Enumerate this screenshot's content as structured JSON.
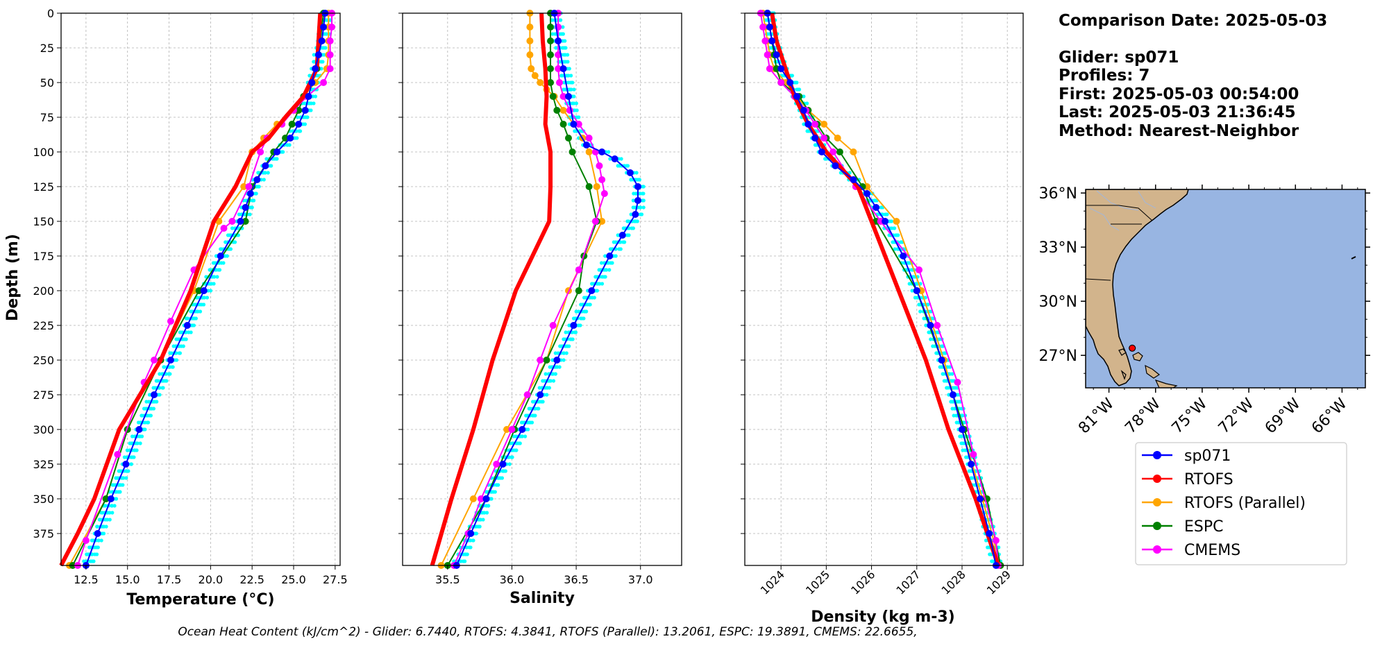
{
  "colors": {
    "sp071": "#0000ff",
    "glider_profiles": "#00ffff",
    "RTOFS": "#ff0000",
    "RTOFS (Parallel)": "#ffa500",
    "ESPC": "#008000",
    "CMEMS": "#ff00ff",
    "land": "#d2b48c",
    "ocean": "#98b5e2",
    "grid": "#b0b0b0"
  },
  "info": {
    "comparison_date": "Comparison Date: 2025-05-03",
    "glider": "Glider: sp071",
    "profiles": "Profiles: 7",
    "first": "First: 2025-05-03 00:54:00",
    "last": "Last: 2025-05-03 21:36:45",
    "method": "Method: Nearest-Neighbor"
  },
  "footer": "Ocean Heat Content (kJ/cm^2) - Glider: 6.7440,  RTOFS: 4.3841,  RTOFS (Parallel): 13.2061,  ESPC: 19.3891,  CMEMS: 22.6655,",
  "map": {
    "lat_labels": [
      "36°N",
      "33°N",
      "30°N",
      "27°N"
    ],
    "lon_labels": [
      "81°W",
      "78°W",
      "75°W",
      "72°W",
      "69°W",
      "66°W"
    ],
    "glider_position": {
      "lon": -79.5,
      "lat": 27.4
    }
  },
  "legend": [
    "sp071",
    "RTOFS",
    "RTOFS (Parallel)",
    "ESPC",
    "CMEMS"
  ],
  "chart_data": [
    {
      "type": "line",
      "xlabel": "Temperature (°C)",
      "ylabel": "Depth (m)",
      "xlim": [
        11.0,
        27.8
      ],
      "ylim": [
        398,
        0
      ],
      "xticks": [
        "12.5",
        "15.0",
        "17.5",
        "20.0",
        "22.5",
        "25.0",
        "27.5"
      ],
      "yticks": [
        "0",
        "25",
        "50",
        "75",
        "100",
        "125",
        "150",
        "175",
        "200",
        "225",
        "250",
        "275",
        "300",
        "325",
        "350",
        "375"
      ],
      "grid": true,
      "series": [
        {
          "name": "sp071",
          "depth": [
            0,
            10,
            20,
            30,
            40,
            50,
            60,
            70,
            80,
            90,
            100,
            110,
            120,
            130,
            140,
            150,
            175,
            200,
            225,
            250,
            275,
            300,
            325,
            350,
            375,
            398
          ],
          "values": [
            26.9,
            26.8,
            26.7,
            26.5,
            26.3,
            26.1,
            25.9,
            25.7,
            25.3,
            24.8,
            24.0,
            23.3,
            22.8,
            22.4,
            22.1,
            21.8,
            20.6,
            19.6,
            18.6,
            17.6,
            16.6,
            15.7,
            14.9,
            14.0,
            13.2,
            12.5
          ]
        },
        {
          "name": "RTOFS",
          "depth": [
            0,
            20,
            40,
            50,
            60,
            75,
            90,
            100,
            125,
            150,
            200,
            250,
            300,
            350,
            375,
            398
          ],
          "values": [
            26.6,
            26.5,
            26.4,
            26.0,
            25.6,
            24.5,
            23.5,
            22.5,
            21.5,
            20.2,
            18.8,
            17.0,
            14.5,
            13.0,
            12.0,
            11.0
          ]
        },
        {
          "name": "RTOFS (Parallel)",
          "depth": [
            0,
            10,
            20,
            30,
            40,
            50,
            60,
            70,
            80,
            90,
            100,
            125,
            150,
            200,
            250,
            300,
            350,
            398
          ],
          "values": [
            27.1,
            27.1,
            27.1,
            27.1,
            27.0,
            26.3,
            25.6,
            25.1,
            24.0,
            23.2,
            22.5,
            22.0,
            20.5,
            19.0,
            17.0,
            15.0,
            13.7,
            11.5
          ]
        },
        {
          "name": "ESPC",
          "depth": [
            0,
            10,
            20,
            30,
            40,
            50,
            60,
            70,
            80,
            90,
            100,
            125,
            150,
            200,
            250,
            300,
            350,
            398
          ],
          "values": [
            26.8,
            26.7,
            26.6,
            26.5,
            26.4,
            26.1,
            25.6,
            25.3,
            24.9,
            24.5,
            23.8,
            22.5,
            22.1,
            19.3,
            17.0,
            15.0,
            13.7,
            11.7
          ]
        },
        {
          "name": "CMEMS",
          "depth": [
            0,
            10,
            20,
            30,
            40,
            50,
            60,
            70,
            80,
            90,
            100,
            125,
            150,
            155,
            185,
            222,
            250,
            266,
            318,
            380,
            398
          ],
          "values": [
            27.3,
            27.3,
            27.2,
            27.2,
            27.2,
            26.8,
            25.8,
            25.0,
            24.3,
            23.4,
            23.0,
            22.3,
            21.3,
            20.8,
            19.0,
            17.6,
            16.6,
            16.0,
            14.4,
            12.5,
            12.0
          ]
        }
      ]
    },
    {
      "type": "line",
      "xlabel": "Salinity",
      "xlim": [
        35.15,
        37.32
      ],
      "ylim": [
        398,
        0
      ],
      "xticks": [
        "35.5",
        "36.0",
        "36.5",
        "37.0"
      ],
      "grid": true,
      "series": [
        {
          "name": "sp071",
          "depth": [
            0,
            20,
            40,
            60,
            80,
            95,
            100,
            105,
            115,
            125,
            135,
            145,
            160,
            175,
            200,
            225,
            250,
            275,
            300,
            325,
            350,
            375,
            398
          ],
          "values": [
            36.33,
            36.36,
            36.4,
            36.44,
            36.48,
            36.58,
            36.7,
            36.8,
            36.92,
            36.98,
            36.98,
            36.96,
            36.86,
            36.76,
            36.62,
            36.48,
            36.35,
            36.22,
            36.08,
            35.93,
            35.8,
            35.68,
            35.57
          ]
        },
        {
          "name": "RTOFS",
          "depth": [
            0,
            20,
            40,
            60,
            80,
            100,
            125,
            150,
            200,
            250,
            300,
            350,
            398
          ],
          "values": [
            36.23,
            36.24,
            36.26,
            36.27,
            36.26,
            36.3,
            36.3,
            36.29,
            36.03,
            35.85,
            35.7,
            35.53,
            35.38
          ]
        },
        {
          "name": "RTOFS (Parallel)",
          "depth": [
            0,
            10,
            20,
            30,
            40,
            45,
            50,
            55,
            60,
            70,
            80,
            90,
            100,
            125,
            150,
            200,
            250,
            300,
            350,
            398
          ],
          "values": [
            36.14,
            36.14,
            36.14,
            36.14,
            36.15,
            36.18,
            36.22,
            36.27,
            36.33,
            36.4,
            36.48,
            36.55,
            36.6,
            36.66,
            36.7,
            36.44,
            36.27,
            35.96,
            35.7,
            35.45
          ]
        },
        {
          "name": "ESPC",
          "depth": [
            0,
            10,
            20,
            30,
            40,
            50,
            60,
            70,
            80,
            90,
            100,
            125,
            150,
            175,
            200,
            250,
            300,
            350,
            398
          ],
          "values": [
            36.3,
            36.3,
            36.3,
            36.3,
            36.3,
            36.3,
            36.32,
            36.35,
            36.4,
            36.44,
            36.47,
            36.6,
            36.66,
            36.56,
            36.52,
            36.27,
            36.02,
            35.8,
            35.5
          ]
        },
        {
          "name": "CMEMS",
          "depth": [
            0,
            10,
            20,
            30,
            40,
            50,
            60,
            70,
            80,
            90,
            100,
            110,
            120,
            130,
            150,
            185,
            225,
            250,
            275,
            300,
            325,
            350,
            375,
            398
          ],
          "values": [
            36.36,
            36.36,
            36.36,
            36.36,
            36.36,
            36.37,
            36.4,
            36.45,
            36.52,
            36.6,
            36.65,
            36.68,
            36.7,
            36.72,
            36.65,
            36.52,
            36.32,
            36.22,
            36.12,
            36.0,
            35.88,
            35.76,
            35.66,
            35.55
          ]
        }
      ]
    },
    {
      "type": "line",
      "xlabel": "Density (kg m-3)",
      "xlim": [
        1023.2,
        1029.35
      ],
      "ylim": [
        398,
        0
      ],
      "xticks": [
        "1024",
        "1025",
        "1026",
        "1027",
        "1028",
        "1029"
      ],
      "grid": true,
      "series": [
        {
          "name": "sp071",
          "depth": [
            0,
            10,
            20,
            30,
            40,
            50,
            60,
            70,
            80,
            90,
            100,
            110,
            120,
            130,
            140,
            150,
            175,
            200,
            225,
            250,
            275,
            300,
            325,
            350,
            375,
            398
          ],
          "values": [
            1023.7,
            1023.75,
            1023.8,
            1023.9,
            1024.0,
            1024.2,
            1024.35,
            1024.5,
            1024.6,
            1024.75,
            1024.9,
            1025.2,
            1025.6,
            1025.9,
            1026.1,
            1026.3,
            1026.7,
            1027.0,
            1027.3,
            1027.55,
            1027.8,
            1028.0,
            1028.2,
            1028.4,
            1028.6,
            1028.75
          ]
        },
        {
          "name": "RTOFS",
          "depth": [
            0,
            20,
            40,
            60,
            80,
            100,
            125,
            150,
            200,
            250,
            300,
            350,
            398
          ],
          "values": [
            1023.8,
            1023.9,
            1024.1,
            1024.3,
            1024.6,
            1025.0,
            1025.7,
            1026.0,
            1026.6,
            1027.2,
            1027.7,
            1028.3,
            1028.8
          ]
        },
        {
          "name": "RTOFS (Parallel)",
          "depth": [
            0,
            10,
            20,
            30,
            40,
            50,
            60,
            70,
            80,
            90,
            100,
            125,
            150,
            200,
            250,
            300,
            350,
            398
          ],
          "values": [
            1023.6,
            1023.65,
            1023.7,
            1023.75,
            1023.85,
            1024.1,
            1024.35,
            1024.6,
            1024.95,
            1025.25,
            1025.6,
            1025.9,
            1026.55,
            1027.1,
            1027.6,
            1028.0,
            1028.45,
            1028.85
          ]
        },
        {
          "name": "ESPC",
          "depth": [
            0,
            10,
            20,
            30,
            40,
            50,
            60,
            70,
            80,
            90,
            100,
            125,
            150,
            200,
            250,
            300,
            350,
            398
          ],
          "values": [
            1023.7,
            1023.75,
            1023.8,
            1023.85,
            1023.9,
            1024.0,
            1024.4,
            1024.6,
            1024.8,
            1025.0,
            1025.3,
            1025.8,
            1026.1,
            1027.0,
            1027.55,
            1028.05,
            1028.55,
            1028.85
          ]
        },
        {
          "name": "CMEMS",
          "depth": [
            0,
            10,
            20,
            30,
            40,
            50,
            60,
            70,
            80,
            90,
            100,
            125,
            150,
            185,
            225,
            266,
            318,
            380,
            398
          ],
          "values": [
            1023.55,
            1023.6,
            1023.65,
            1023.7,
            1023.75,
            1024.0,
            1024.3,
            1024.55,
            1024.75,
            1024.95,
            1025.15,
            1025.65,
            1026.2,
            1027.05,
            1027.45,
            1027.9,
            1028.25,
            1028.75,
            1028.8
          ]
        }
      ]
    }
  ]
}
